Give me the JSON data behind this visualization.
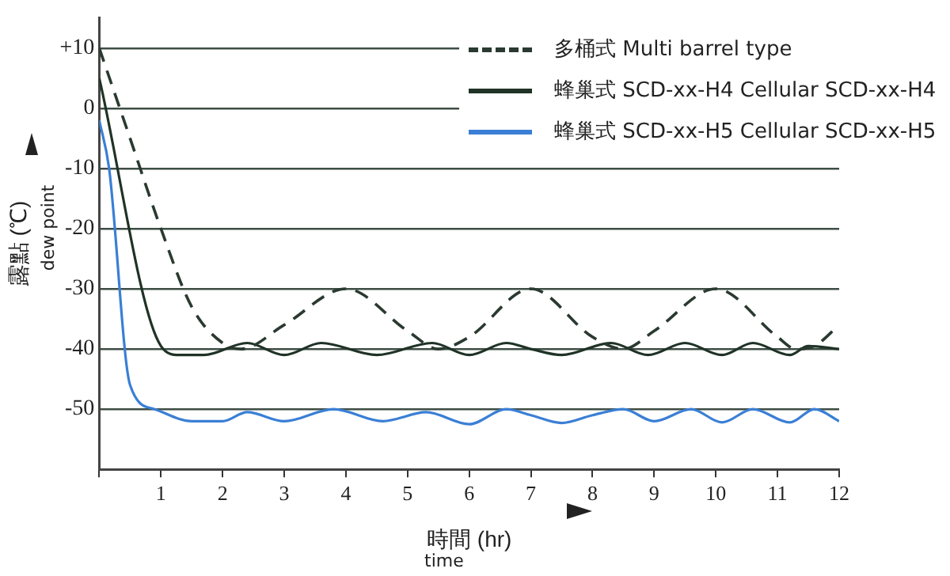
{
  "chart_data": {
    "type": "line",
    "xlabel": "時間 (hr)",
    "ylabel": "露點 (℃)",
    "annotations": [
      "dew point",
      "time"
    ],
    "xlim": [
      0,
      12
    ],
    "xticks": [
      {
        "value": 0,
        "label": null
      },
      1,
      2,
      3,
      4,
      5,
      6,
      7,
      8,
      9,
      10,
      11,
      12
    ],
    "ylim": [
      -60,
      15
    ],
    "yticks": [
      {
        "value": 10,
        "label": "+10"
      },
      0,
      -10,
      -20,
      -30,
      -40,
      -50
    ],
    "grid": "y",
    "legend": "top right",
    "marker": "none",
    "series": [
      {
        "name": "多桶式 Multi barrel type",
        "color": "#2a3a30",
        "line_style": "dashed",
        "x": [
          0,
          0.5,
          1,
          1.5,
          2,
          2.3,
          3,
          4,
          5,
          5.5,
          6,
          7,
          8,
          8.5,
          9,
          10,
          11,
          11.3,
          11.6,
          12
        ],
        "values": [
          10,
          -5,
          -20,
          -33,
          -39,
          -40,
          -36,
          -30,
          -37,
          -40,
          -38,
          -30,
          -38,
          -40,
          -37,
          -30,
          -38,
          -40,
          -39.5,
          -36
        ]
      },
      {
        "name": "蜂巢式 SCD-xx-H4 Cellular SCD-xx-H4",
        "color": "#1f3326",
        "line_style": "solid",
        "x": [
          0,
          1,
          1.3,
          1.7,
          2.4,
          3,
          3.6,
          4.5,
          5.4,
          6,
          6.6,
          7,
          7.5,
          8.3,
          8.9,
          9.5,
          10.1,
          10.6,
          11.2,
          11.5,
          12
        ],
        "values": [
          5,
          -39.5,
          -41,
          -41,
          -39,
          -41,
          -39,
          -41,
          -39,
          -41,
          -39,
          -40,
          -41,
          -39,
          -41,
          -39,
          -41,
          -39,
          -41,
          -39.5,
          -40
        ]
      },
      {
        "name": "蜂巢式 SCD-xx-H5 Cellular SCD-xx-H5",
        "color": "#3a7fd5",
        "line_style": "solid",
        "x": [
          0,
          0.16,
          0.5,
          0.9,
          1.5,
          2,
          2.4,
          3,
          3.8,
          4.6,
          5.3,
          6,
          6.6,
          7,
          7.5,
          8,
          8.5,
          9,
          9.6,
          10.1,
          10.6,
          11.2,
          11.6,
          12
        ],
        "values": [
          -2,
          -10,
          -46,
          -50,
          -52,
          -52,
          -50.5,
          -52,
          -50,
          -52,
          -50.5,
          -52.5,
          -50,
          -51,
          -52.3,
          -51,
          -50,
          -52,
          -50,
          -52.2,
          -50,
          -52.2,
          -50,
          -52
        ]
      }
    ]
  }
}
